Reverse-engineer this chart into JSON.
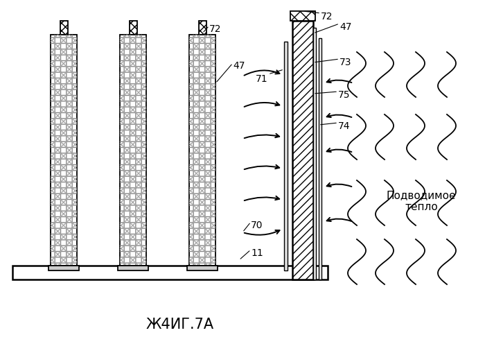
{
  "title": "Ж4ИГ.7А",
  "background_color": "#ffffff",
  "label_color": "#000000",
  "title_fontsize": 15,
  "label_fontsize": 10,
  "fig_width": 7.0,
  "fig_height": 4.96,
  "labels": {
    "72_roller": "72",
    "47_roller": "47",
    "71": "71",
    "72_wall": "72",
    "47_wall": "47",
    "73": "73",
    "75": "75",
    "74": "74",
    "70": "70",
    "11": "11",
    "heat_text": "Подводимое\nтепло"
  }
}
